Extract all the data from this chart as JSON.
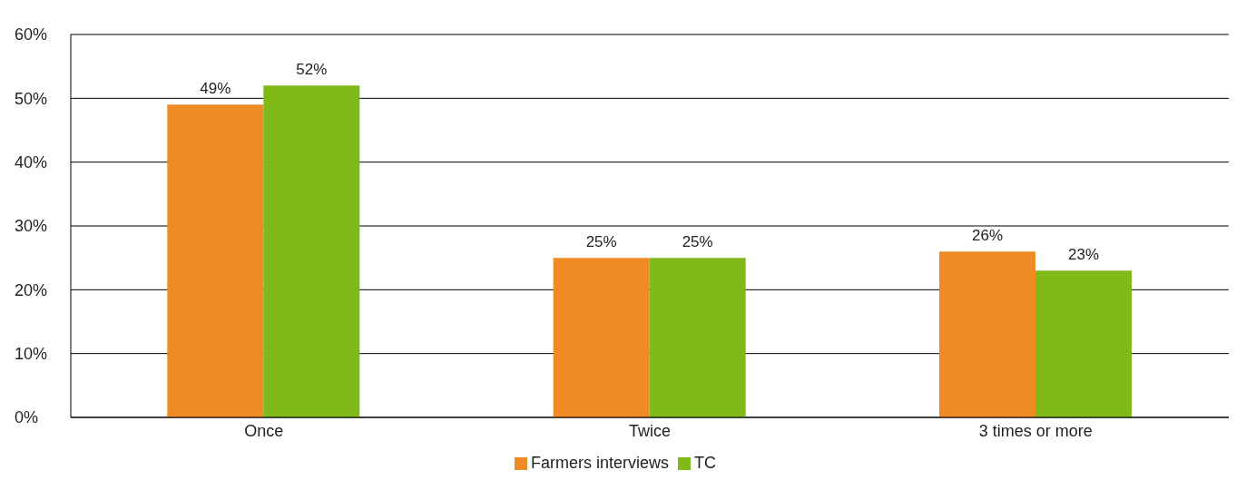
{
  "chart_data": {
    "type": "bar",
    "categories": [
      "Once",
      "Twice",
      "3 times or more"
    ],
    "series": [
      {
        "name": "Farmers interviews",
        "color": "#f08a24",
        "values": [
          49,
          25,
          26
        ],
        "value_labels": [
          "49%",
          "25%",
          "26%"
        ]
      },
      {
        "name": "TC",
        "color": "#80b918",
        "values": [
          52,
          25,
          23
        ],
        "value_labels": [
          "52%",
          "25%",
          "23%"
        ]
      }
    ],
    "ylim": [
      0,
      60
    ],
    "yticks": [
      {
        "value": 0,
        "label": "0%"
      },
      {
        "value": 10,
        "label": "10%"
      },
      {
        "value": 20,
        "label": "20%"
      },
      {
        "value": 30,
        "label": "30%"
      },
      {
        "value": 40,
        "label": "40%"
      },
      {
        "value": 50,
        "label": "50%"
      },
      {
        "value": 60,
        "label": "60%"
      }
    ],
    "grid": "y",
    "legend": "bottom"
  }
}
